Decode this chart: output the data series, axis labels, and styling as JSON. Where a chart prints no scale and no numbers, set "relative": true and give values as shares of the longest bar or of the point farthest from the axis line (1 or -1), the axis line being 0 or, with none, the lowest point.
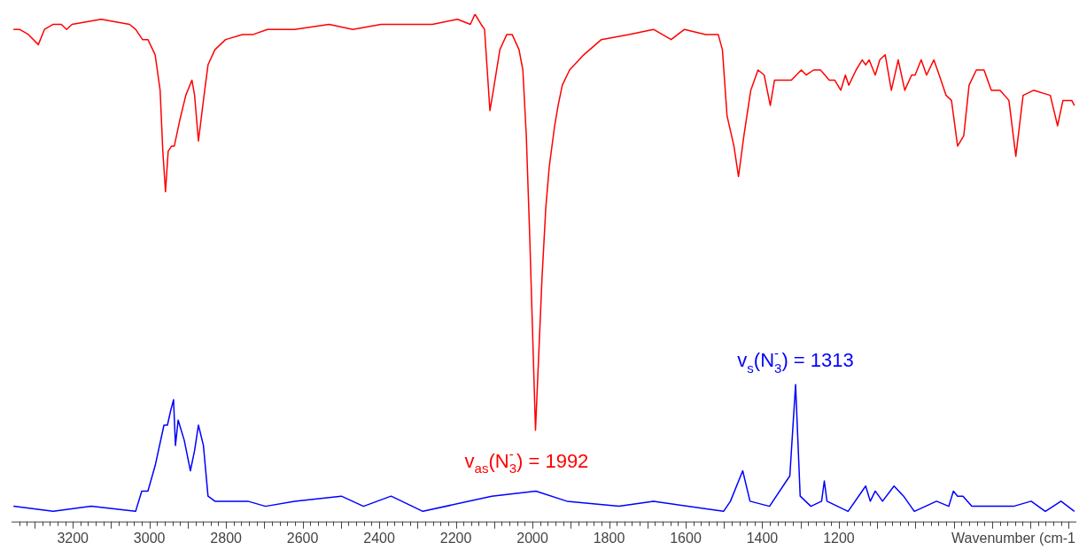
{
  "chart_data": {
    "type": "line",
    "relative": true,
    "marker": "none",
    "xlabel": "Wavenumber (cm-1",
    "xlim": [
      3360,
      580
    ],
    "xticks": [
      {
        "value": 3340,
        "label": null
      },
      {
        "value": 3320,
        "label": null
      },
      {
        "value": 3300,
        "label": null
      },
      {
        "value": 3280,
        "label": null
      },
      {
        "value": 3260,
        "label": null
      },
      {
        "value": 3240,
        "label": null
      },
      {
        "value": 3220,
        "label": null
      },
      3200,
      {
        "value": 3180,
        "label": null
      },
      {
        "value": 3160,
        "label": null
      },
      {
        "value": 3140,
        "label": null
      },
      {
        "value": 3120,
        "label": null
      },
      {
        "value": 3100,
        "label": null
      },
      {
        "value": 3080,
        "label": null
      },
      {
        "value": 3060,
        "label": null
      },
      {
        "value": 3040,
        "label": null
      },
      {
        "value": 3020,
        "label": null
      },
      3000,
      {
        "value": 2980,
        "label": null
      },
      {
        "value": 2960,
        "label": null
      },
      {
        "value": 2940,
        "label": null
      },
      {
        "value": 2920,
        "label": null
      },
      {
        "value": 2900,
        "label": null
      },
      {
        "value": 2880,
        "label": null
      },
      {
        "value": 2860,
        "label": null
      },
      {
        "value": 2840,
        "label": null
      },
      {
        "value": 2820,
        "label": null
      },
      2800,
      {
        "value": 2780,
        "label": null
      },
      {
        "value": 2760,
        "label": null
      },
      {
        "value": 2740,
        "label": null
      },
      {
        "value": 2720,
        "label": null
      },
      {
        "value": 2700,
        "label": null
      },
      {
        "value": 2680,
        "label": null
      },
      {
        "value": 2660,
        "label": null
      },
      {
        "value": 2640,
        "label": null
      },
      {
        "value": 2620,
        "label": null
      },
      2600,
      {
        "value": 2580,
        "label": null
      },
      {
        "value": 2560,
        "label": null
      },
      {
        "value": 2540,
        "label": null
      },
      {
        "value": 2520,
        "label": null
      },
      {
        "value": 2500,
        "label": null
      },
      {
        "value": 2480,
        "label": null
      },
      {
        "value": 2460,
        "label": null
      },
      {
        "value": 2440,
        "label": null
      },
      {
        "value": 2420,
        "label": null
      },
      2400,
      {
        "value": 2380,
        "label": null
      },
      {
        "value": 2360,
        "label": null
      },
      {
        "value": 2340,
        "label": null
      },
      {
        "value": 2320,
        "label": null
      },
      {
        "value": 2300,
        "label": null
      },
      {
        "value": 2280,
        "label": null
      },
      {
        "value": 2260,
        "label": null
      },
      {
        "value": 2240,
        "label": null
      },
      {
        "value": 2220,
        "label": null
      },
      2200,
      {
        "value": 2180,
        "label": null
      },
      {
        "value": 2160,
        "label": null
      },
      {
        "value": 2140,
        "label": null
      },
      {
        "value": 2120,
        "label": null
      },
      {
        "value": 2100,
        "label": null
      },
      {
        "value": 2080,
        "label": null
      },
      {
        "value": 2060,
        "label": null
      },
      {
        "value": 2040,
        "label": null
      },
      {
        "value": 2020,
        "label": null
      },
      2000,
      {
        "value": 1980,
        "label": null
      },
      {
        "value": 1960,
        "label": null
      },
      {
        "value": 1940,
        "label": null
      },
      {
        "value": 1920,
        "label": null
      },
      {
        "value": 1900,
        "label": null
      },
      {
        "value": 1880,
        "label": null
      },
      {
        "value": 1860,
        "label": null
      },
      {
        "value": 1840,
        "label": null
      },
      {
        "value": 1820,
        "label": null
      },
      1800,
      {
        "value": 1780,
        "label": null
      },
      {
        "value": 1760,
        "label": null
      },
      {
        "value": 1740,
        "label": null
      },
      {
        "value": 1720,
        "label": null
      },
      {
        "value": 1700,
        "label": null
      },
      {
        "value": 1680,
        "label": null
      },
      {
        "value": 1660,
        "label": null
      },
      {
        "value": 1640,
        "label": null
      },
      {
        "value": 1620,
        "label": null
      },
      1600,
      {
        "value": 1580,
        "label": null
      },
      {
        "value": 1560,
        "label": null
      },
      {
        "value": 1540,
        "label": null
      },
      {
        "value": 1520,
        "label": null
      },
      {
        "value": 1500,
        "label": null
      },
      {
        "value": 1480,
        "label": null
      },
      {
        "value": 1460,
        "label": null
      },
      {
        "value": 1440,
        "label": null
      },
      {
        "value": 1420,
        "label": null
      },
      1400,
      {
        "value": 1380,
        "label": null
      },
      {
        "value": 1360,
        "label": null
      },
      {
        "value": 1340,
        "label": null
      },
      {
        "value": 1320,
        "label": null
      },
      {
        "value": 1300,
        "label": null
      },
      {
        "value": 1280,
        "label": null
      },
      {
        "value": 1260,
        "label": null
      },
      {
        "value": 1240,
        "label": null
      },
      {
        "value": 1220,
        "label": null
      },
      1200,
      {
        "value": 1180,
        "label": null
      },
      {
        "value": 1160,
        "label": null
      },
      {
        "value": 1140,
        "label": null
      },
      {
        "value": 1120,
        "label": null
      },
      {
        "value": 1100,
        "label": null
      },
      {
        "value": 1080,
        "label": null
      },
      {
        "value": 1060,
        "label": null
      },
      {
        "value": 1040,
        "label": null
      },
      {
        "value": 1020,
        "label": null
      },
      {
        "value": 1000,
        "label": null
      },
      {
        "value": 980,
        "label": null
      },
      {
        "value": 960,
        "label": null
      },
      {
        "value": 940,
        "label": null
      },
      {
        "value": 920,
        "label": null
      },
      {
        "value": 900,
        "label": null
      },
      {
        "value": 880,
        "label": null
      },
      {
        "value": 860,
        "label": null
      },
      {
        "value": 840,
        "label": null
      },
      {
        "value": 820,
        "label": null
      },
      {
        "value": 800,
        "label": null
      },
      {
        "value": 780,
        "label": null
      },
      {
        "value": 760,
        "label": null
      },
      {
        "value": 740,
        "label": null
      },
      {
        "value": 720,
        "label": null
      },
      {
        "value": 700,
        "label": null
      },
      {
        "value": 680,
        "label": null
      },
      {
        "value": 660,
        "label": null
      },
      {
        "value": 640,
        "label": null
      },
      {
        "value": 620,
        "label": null
      },
      {
        "value": 600,
        "label": null
      }
    ],
    "series": [
      {
        "color": "#ff0000",
        "x": [
          3355,
          3339,
          3316,
          3290,
          3274,
          3251,
          3230,
          3216,
          3202,
          3126,
          3052,
          3036,
          3018,
          3004,
          2985,
          2972,
          2965,
          2958,
          2951,
          2942,
          2935,
          2921,
          2905,
          2889,
          2882,
          2872,
          2859,
          2847,
          2829,
          2801,
          2757,
          2729,
          2692,
          2621,
          2531,
          2469,
          2395,
          2323,
          2261,
          2196,
          2162,
          2150,
          2134,
          2125,
          2118,
          2111,
          2102,
          2085,
          2067,
          2053,
          2035,
          2025,
          2016,
          2007,
          1992,
          1975,
          1965,
          1956,
          1942,
          1933,
          1922,
          1903,
          1866,
          1820,
          1748,
          1684,
          1638,
          1603,
          1548,
          1515,
          1504,
          1492,
          1474,
          1462,
          1448,
          1430,
          1411,
          1395,
          1379,
          1368,
          1347,
          1324,
          1298,
          1285,
          1266,
          1248,
          1225,
          1211,
          1195,
          1183,
          1174,
          1155,
          1139,
          1130,
          1121,
          1105,
          1093,
          1079,
          1063,
          1045,
          1028,
          1010,
          1001,
          985,
          971,
          952,
          938,
          920,
          906,
          890,
          874,
          860,
          841,
          821,
          802,
          779,
          756,
          738,
          719,
          691,
          648,
          629,
          615,
          592,
          585
        ],
        "values": [
          0.97,
          0.97,
          0.96,
          0.94,
          0.97,
          0.98,
          0.98,
          0.97,
          0.98,
          0.99,
          0.98,
          0.97,
          0.95,
          0.95,
          0.92,
          0.85,
          0.73,
          0.65,
          0.73,
          0.74,
          0.74,
          0.79,
          0.84,
          0.87,
          0.84,
          0.75,
          0.83,
          0.9,
          0.93,
          0.95,
          0.96,
          0.96,
          0.97,
          0.97,
          0.98,
          0.97,
          0.98,
          0.98,
          0.98,
          0.99,
          0.98,
          1.0,
          0.98,
          0.97,
          0.89,
          0.81,
          0.85,
          0.93,
          0.96,
          0.96,
          0.93,
          0.89,
          0.76,
          0.56,
          0.18,
          0.48,
          0.62,
          0.7,
          0.78,
          0.82,
          0.86,
          0.89,
          0.92,
          0.95,
          0.96,
          0.97,
          0.95,
          0.97,
          0.96,
          0.96,
          0.93,
          0.8,
          0.74,
          0.68,
          0.76,
          0.85,
          0.89,
          0.88,
          0.82,
          0.87,
          0.87,
          0.87,
          0.89,
          0.88,
          0.89,
          0.89,
          0.87,
          0.87,
          0.85,
          0.88,
          0.86,
          0.89,
          0.91,
          0.9,
          0.91,
          0.88,
          0.91,
          0.92,
          0.85,
          0.91,
          0.85,
          0.88,
          0.88,
          0.91,
          0.88,
          0.91,
          0.88,
          0.84,
          0.83,
          0.74,
          0.76,
          0.86,
          0.89,
          0.89,
          0.85,
          0.85,
          0.83,
          0.72,
          0.84,
          0.85,
          0.84,
          0.78,
          0.83,
          0.83,
          0.82
        ]
      },
      {
        "color": "#0000ff",
        "x": [
          3355,
          3251,
          3152,
          3036,
          3020,
          3004,
          2985,
          2962,
          2953,
          2944,
          2937,
          2932,
          2925,
          2909,
          2893,
          2882,
          2872,
          2859,
          2847,
          2829,
          2743,
          2697,
          2621,
          2499,
          2441,
          2369,
          2286,
          2106,
          1991,
          1910,
          1774,
          1684,
          1501,
          1483,
          1451,
          1432,
          1381,
          1328,
          1313,
          1301,
          1273,
          1245,
          1238,
          1231,
          1176,
          1130,
          1118,
          1105,
          1086,
          1056,
          1031,
          1003,
          945,
          913,
          901,
          890,
          876,
          853,
          744,
          698,
          661,
          620,
          585
        ],
        "values": [
          0.03,
          0.02,
          0.03,
          0.02,
          0.06,
          0.06,
          0.11,
          0.19,
          0.19,
          0.22,
          0.24,
          0.15,
          0.2,
          0.16,
          0.1,
          0.14,
          0.19,
          0.15,
          0.05,
          0.04,
          0.04,
          0.03,
          0.04,
          0.05,
          0.03,
          0.05,
          0.02,
          0.05,
          0.06,
          0.04,
          0.03,
          0.04,
          0.02,
          0.04,
          0.1,
          0.04,
          0.03,
          0.09,
          0.27,
          0.05,
          0.03,
          0.04,
          0.08,
          0.04,
          0.02,
          0.07,
          0.04,
          0.06,
          0.04,
          0.07,
          0.05,
          0.02,
          0.04,
          0.03,
          0.06,
          0.05,
          0.05,
          0.03,
          0.03,
          0.04,
          0.02,
          0.04,
          0.02
        ]
      }
    ],
    "annotations": [
      {
        "text": "v$_{as}$(N$_{3}$$^{-}$) = 1992",
        "x": 1992,
        "y": 0.18
      },
      {
        "text": "v$_{s}$(N$_{3}$$^{-}$) = 1313",
        "x": 1313,
        "y": 0.27
      }
    ]
  }
}
